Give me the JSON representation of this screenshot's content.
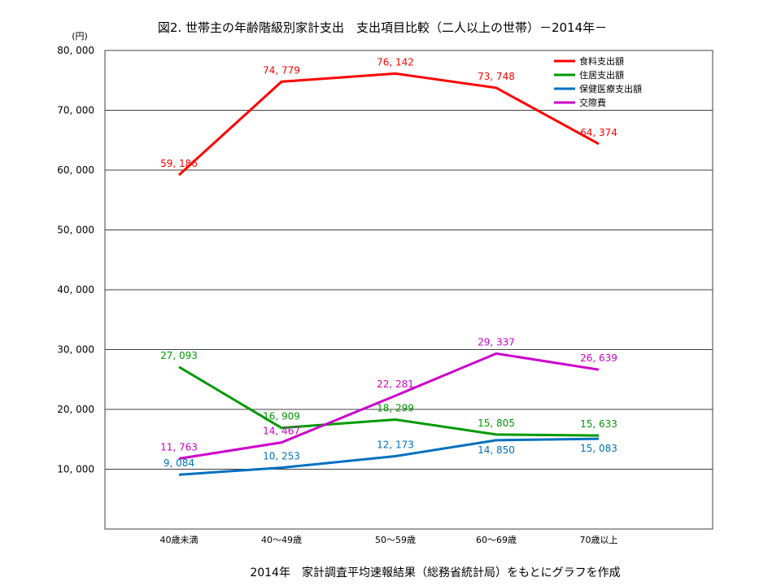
{
  "chart_data": {
    "type": "line",
    "title": "図2. 世帯主の年齢階級別家計支出　支出項目比較（二人以上の世帯）－2014年－",
    "ylabel": "(円)",
    "xlabel": "",
    "source_note": "2014年　家計調査平均速報結果（総務省統計局）をもとにグラフを作成",
    "ylim": [
      0,
      80000
    ],
    "yticks": [
      10000,
      20000,
      30000,
      40000,
      50000,
      60000,
      70000,
      80000
    ],
    "ytick_labels": [
      "10, 000",
      "20, 000",
      "30, 000",
      "40, 000",
      "50, 000",
      "60, 000",
      "70, 000",
      "80, 000"
    ],
    "categories": [
      "40歳未満",
      "40～49歳",
      "50～59歳",
      "60～69歳",
      "70歳以上"
    ],
    "grid": true,
    "legend_position": "top-right",
    "series": [
      {
        "name": "食料支出額",
        "color": "#ff0000",
        "values": [
          59186,
          74779,
          76142,
          73748,
          64374
        ],
        "labels": [
          "59, 186",
          "74, 779",
          "76, 142",
          "73, 748",
          "64, 374"
        ]
      },
      {
        "name": "住居支出額",
        "color": "#009900",
        "values": [
          27093,
          16909,
          18299,
          15805,
          15633
        ],
        "labels": [
          "27, 093",
          "16, 909",
          "18, 299",
          "15, 805",
          "15, 633"
        ]
      },
      {
        "name": "保健医療支出額",
        "color": "#0070c0",
        "values": [
          9084,
          10253,
          12173,
          14850,
          15083
        ],
        "labels": [
          "9, 084",
          "10, 253",
          "12, 173",
          "14, 850",
          "15, 083"
        ]
      },
      {
        "name": "交際費",
        "color": "#cc00cc",
        "values": [
          11763,
          14467,
          22281,
          29337,
          26639
        ],
        "labels": [
          "11, 763",
          "14, 467",
          "22, 281",
          "29, 337",
          "26, 639"
        ]
      }
    ]
  }
}
